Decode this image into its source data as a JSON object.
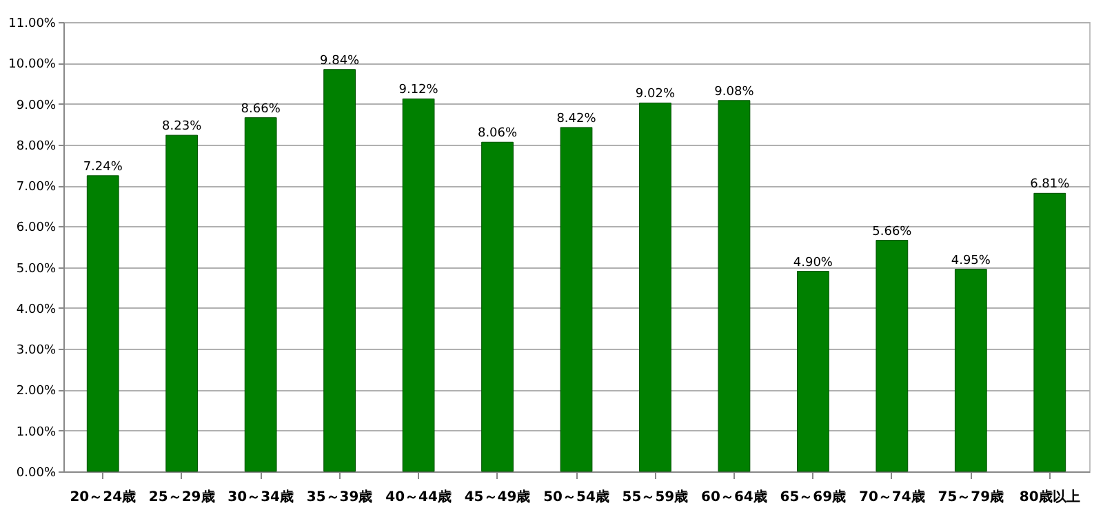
{
  "chart_data": {
    "type": "bar",
    "categories": [
      "20～24歳",
      "25～29歳",
      "30～34歳",
      "35～39歳",
      "40～44歳",
      "45～49歳",
      "50～54歳",
      "55～59歳",
      "60～64歳",
      "65～69歳",
      "70～74歳",
      "75～79歳",
      "80歳以上"
    ],
    "values": [
      7.24,
      8.23,
      8.66,
      9.84,
      9.12,
      8.06,
      8.42,
      9.02,
      9.08,
      4.9,
      5.66,
      4.95,
      6.81
    ],
    "value_labels": [
      "7.24%",
      "8.23%",
      "8.66%",
      "9.84%",
      "9.12%",
      "8.06%",
      "8.42%",
      "9.02%",
      "9.08%",
      "4.90%",
      "5.66%",
      "4.95%",
      "6.81%"
    ],
    "color": "#008000",
    "ylim": [
      0,
      11
    ],
    "yticks": [
      {
        "value": 0,
        "label": "0.00%"
      },
      {
        "value": 1,
        "label": "1.00%"
      },
      {
        "value": 2,
        "label": "2.00%"
      },
      {
        "value": 3,
        "label": "3.00%"
      },
      {
        "value": 4,
        "label": "4.00%"
      },
      {
        "value": 5,
        "label": "5.00%"
      },
      {
        "value": 6,
        "label": "6.00%"
      },
      {
        "value": 7,
        "label": "7.00%"
      },
      {
        "value": 8,
        "label": "8.00%"
      },
      {
        "value": 9,
        "label": "9.00%"
      },
      {
        "value": 10,
        "label": "10.00%"
      },
      {
        "value": 11,
        "label": "11.00%"
      }
    ],
    "grid": "y"
  }
}
